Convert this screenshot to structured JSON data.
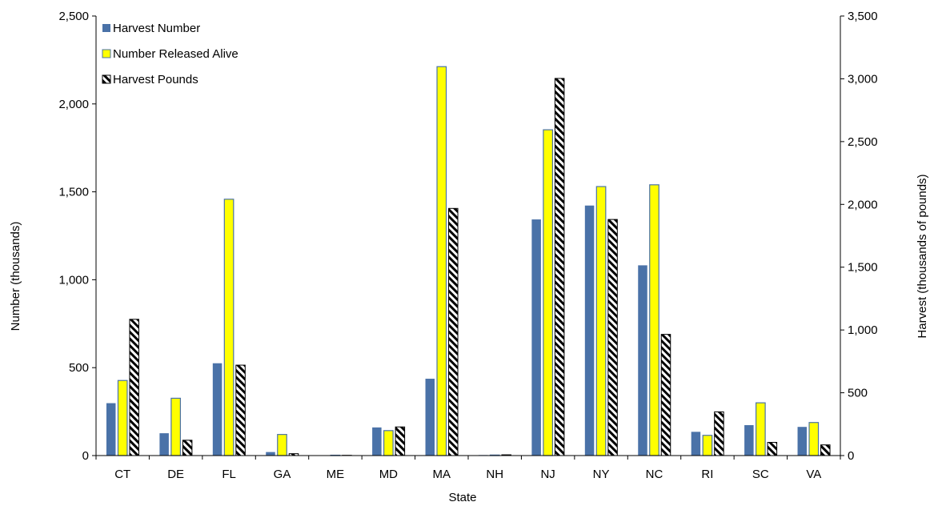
{
  "chart_data": {
    "type": "bar",
    "categories": [
      "CT",
      "DE",
      "FL",
      "GA",
      "ME",
      "MD",
      "MA",
      "NH",
      "NJ",
      "NY",
      "NC",
      "RI",
      "SC",
      "VA"
    ],
    "xlabel": "State",
    "ylabel": "Number (thousands)",
    "y2label": "Harvest (thousands of pounds)",
    "ylim": [
      0,
      2500
    ],
    "y2lim": [
      0,
      3500
    ],
    "yticks": [
      0,
      500,
      1000,
      1500,
      2000,
      2500
    ],
    "ytick_labels": [
      "0",
      "500",
      "1,000",
      "1,500",
      "2,000",
      "2,500"
    ],
    "y2ticks": [
      0,
      500,
      1000,
      1500,
      2000,
      2500,
      3000,
      3500
    ],
    "y2tick_labels": [
      "0",
      "500",
      "1,000",
      "1,500",
      "2,000",
      "2,500",
      "3,000",
      "3,500"
    ],
    "legend_position": "top-left",
    "grid": false,
    "series": [
      {
        "name": "Harvest Number",
        "axis": "left",
        "color": "#4a72a8",
        "values": [
          298,
          127,
          525,
          20,
          2,
          160,
          437,
          3,
          1343,
          1422,
          1082,
          135,
          173,
          163
        ]
      },
      {
        "name": "Number Released Alive",
        "axis": "left",
        "color": "#ffff00",
        "values": [
          427,
          326,
          1458,
          120,
          2,
          142,
          2212,
          3,
          1853,
          1530,
          1540,
          115,
          300,
          188
        ]
      },
      {
        "name": "Harvest Pounds",
        "axis": "right",
        "color": "#000000",
        "values": [
          1085,
          122,
          720,
          15,
          2,
          228,
          1968,
          6,
          3003,
          1880,
          965,
          348,
          105,
          85
        ]
      }
    ]
  }
}
